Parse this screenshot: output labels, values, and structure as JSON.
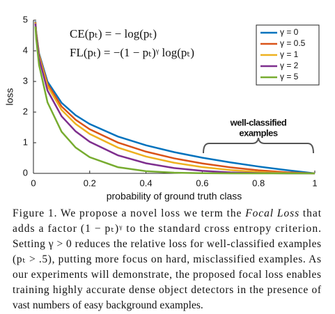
{
  "chart_data": {
    "type": "line",
    "xlabel": "probability of ground truth class",
    "ylabel": "loss",
    "equations": [
      "CE(pₜ) = − log(pₜ)",
      "FL(pₜ) = −(1 − pₜ)ᵞ log(pₜ)"
    ],
    "annotation": [
      "well-classified",
      "examples"
    ],
    "x": [
      0.007,
      0.01,
      0.02,
      0.05,
      0.1,
      0.15,
      0.2,
      0.3,
      0.4,
      0.5,
      0.6,
      0.7,
      0.8,
      0.9,
      1.0
    ],
    "series": [
      {
        "name": "γ = 0",
        "color": "#0072bd",
        "values": [
          4.962,
          4.605,
          3.912,
          2.996,
          2.303,
          1.897,
          1.609,
          1.204,
          0.916,
          0.693,
          0.511,
          0.357,
          0.223,
          0.105,
          0
        ]
      },
      {
        "name": "γ = 0.5",
        "color": "#d95319",
        "values": [
          4.945,
          4.582,
          3.873,
          2.92,
          2.185,
          1.749,
          1.439,
          1.007,
          0.71,
          0.49,
          0.323,
          0.196,
          0.1,
          0.033,
          0
        ]
      },
      {
        "name": "γ = 1",
        "color": "#edb120",
        "values": [
          4.927,
          4.559,
          3.834,
          2.846,
          2.072,
          1.612,
          1.287,
          0.843,
          0.55,
          0.347,
          0.204,
          0.107,
          0.045,
          0.011,
          0
        ]
      },
      {
        "name": "γ = 2",
        "color": "#7e2f8e",
        "values": [
          4.893,
          4.514,
          3.757,
          2.704,
          1.865,
          1.371,
          1.03,
          0.59,
          0.33,
          0.173,
          0.082,
          0.032,
          0.009,
          0.001,
          0
        ]
      },
      {
        "name": "γ = 5",
        "color": "#77ac30",
        "values": [
          4.79,
          4.38,
          3.536,
          2.318,
          1.359,
          0.842,
          0.527,
          0.202,
          0.071,
          0.022,
          0.005,
          0.001,
          0,
          0,
          0
        ]
      }
    ],
    "xlim": [
      0,
      1
    ],
    "xticks": [
      0,
      0.2,
      0.4,
      0.6,
      0.8,
      1
    ],
    "ylim": [
      0,
      5
    ],
    "yticks": [
      0,
      1,
      2,
      3,
      4,
      5
    ],
    "legend": "upper right"
  },
  "caption": {
    "lines": [
      [
        {
          "text": "Figure 1. We propose a novel loss we term the "
        },
        {
          "text": "Focal Loss",
          "italic": true
        },
        {
          "text": " that"
        }
      ],
      [
        {
          "text": "adds a factor (1 − pₜ)ᵞ to the standard cross entropy criterion."
        }
      ],
      [
        {
          "text": "Setting γ > 0 reduces the relative loss for well-classified examples"
        }
      ],
      [
        {
          "text": "(pₜ > .5), putting more focus on hard, misclassified examples. As"
        }
      ],
      [
        {
          "text": "our experiments will demonstrate, the proposed focal loss enables"
        }
      ],
      [
        {
          "text": "training highly accurate dense object detectors in the presence of"
        }
      ],
      [
        {
          "text": "vast numbers of easy background examples."
        }
      ]
    ]
  }
}
